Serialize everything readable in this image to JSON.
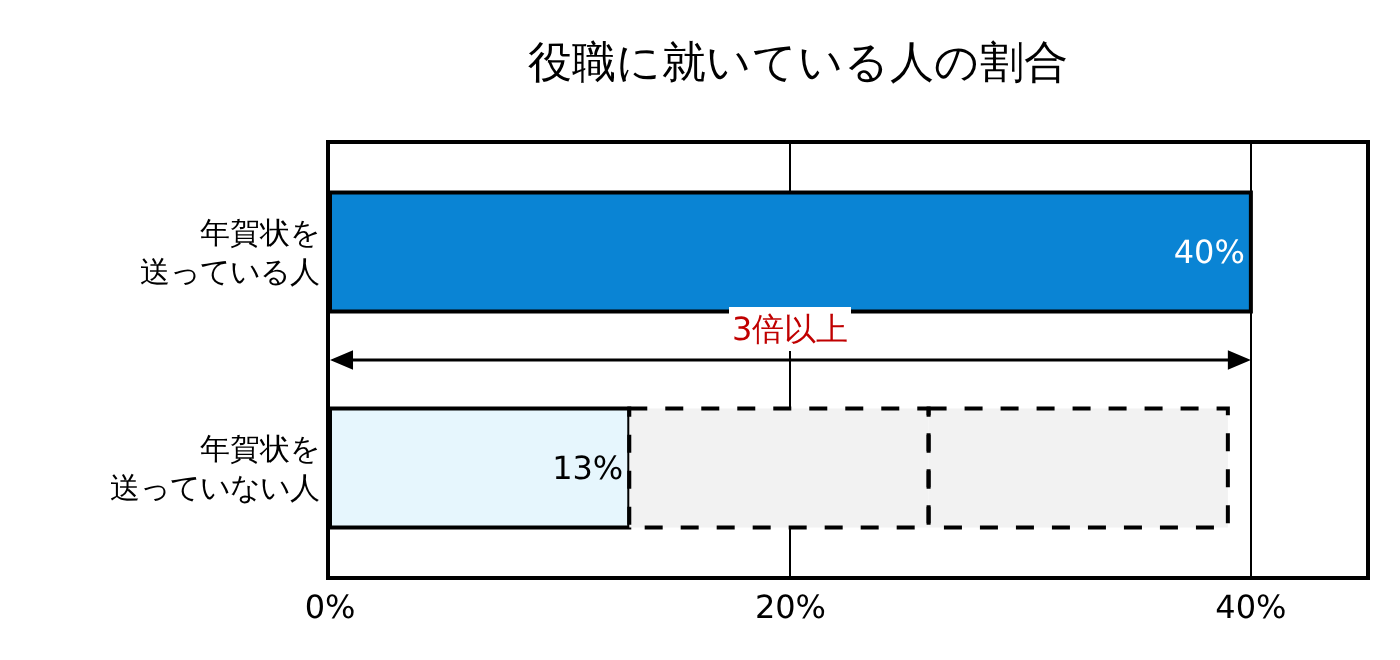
{
  "chart_data": {
    "type": "bar",
    "orientation": "horizontal",
    "stacked": true,
    "title": "役職に就いている人の割合",
    "categories": [
      "年賀状を送っている人",
      "年賀状を送っていない人"
    ],
    "series": [
      {
        "colors": [
          "#0a84d4",
          "#e6f6fd"
        ],
        "values": [
          40,
          13
        ],
        "value_labels": [
          "40%",
          "13%"
        ],
        "line_style": "solid"
      },
      {
        "color": "#f2f2f2",
        "values": [
          null,
          13
        ],
        "line_style": "dashed"
      },
      {
        "color": "#f2f2f2",
        "values": [
          null,
          13
        ],
        "line_style": "dashed"
      }
    ],
    "annotations": [
      "3倍以上"
    ],
    "xlim": [
      0,
      45
    ],
    "xticks": [
      {
        "value": 0,
        "label": "0%"
      },
      {
        "value": 20,
        "label": "20%"
      },
      {
        "value": 40,
        "label": "40%"
      }
    ],
    "grid": "x"
  }
}
